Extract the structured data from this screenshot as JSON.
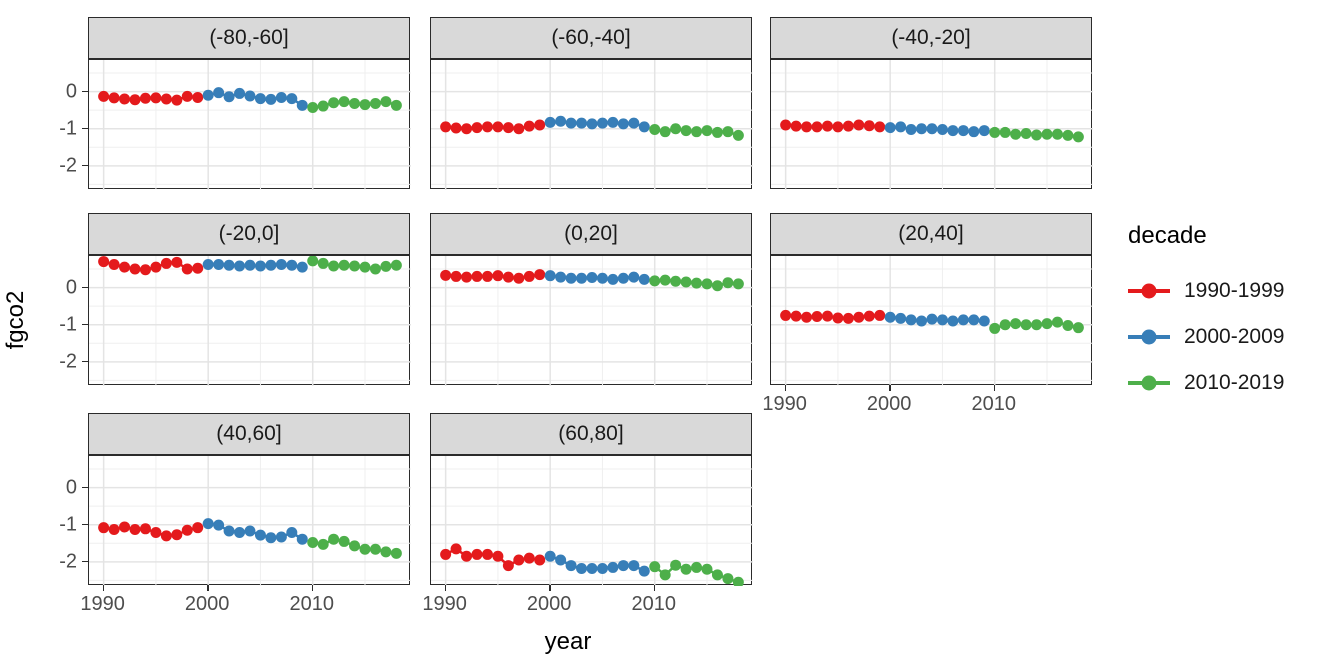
{
  "chart_data": {
    "type": "scatter",
    "title": "",
    "xlabel": "year",
    "ylabel": "fgco2",
    "legend_title": "decade",
    "legend_position": "right",
    "grid": "major+minor",
    "xlim": [
      1988.6,
      2019.4
    ],
    "ylim": [
      -2.65,
      0.85
    ],
    "x_ticks": [
      1990,
      2000,
      2010
    ],
    "x_tick_labels": [
      "1990",
      "2000",
      "2010"
    ],
    "x_minor_ticks": [
      1995,
      2005,
      2015
    ],
    "y_ticks": [
      0,
      -1,
      -2
    ],
    "y_tick_labels": [
      "0",
      "-1",
      "-2"
    ],
    "y_minor_ticks": [
      0.5,
      -0.5,
      -1.5,
      -2.5
    ],
    "series": [
      {
        "name": "1990-1999",
        "color": "#E41A1C",
        "start": 1990,
        "end": 1999
      },
      {
        "name": "2000-2009",
        "color": "#377EB8",
        "start": 2000,
        "end": 2009
      },
      {
        "name": "2010-2019",
        "color": "#4DAF4A",
        "start": 2010,
        "end": 2019
      }
    ],
    "years": [
      1990,
      1991,
      1992,
      1993,
      1994,
      1995,
      1996,
      1997,
      1998,
      1999,
      2000,
      2001,
      2002,
      2003,
      2004,
      2005,
      2006,
      2007,
      2008,
      2009,
      2010,
      2011,
      2012,
      2013,
      2014,
      2015,
      2016,
      2017,
      2018
    ],
    "facets": [
      {
        "label": "(-80,-60]",
        "values": [
          -0.13,
          -0.17,
          -0.2,
          -0.22,
          -0.18,
          -0.17,
          -0.2,
          -0.23,
          -0.13,
          -0.16,
          -0.1,
          -0.03,
          -0.14,
          -0.05,
          -0.12,
          -0.19,
          -0.21,
          -0.16,
          -0.19,
          -0.37,
          -0.43,
          -0.39,
          -0.3,
          -0.27,
          -0.32,
          -0.35,
          -0.32,
          -0.27,
          -0.37
        ]
      },
      {
        "label": "(-60,-40]",
        "values": [
          -0.95,
          -0.98,
          -1.0,
          -0.97,
          -0.95,
          -0.95,
          -0.97,
          -1.0,
          -0.93,
          -0.9,
          -0.83,
          -0.8,
          -0.85,
          -0.85,
          -0.87,
          -0.85,
          -0.83,
          -0.87,
          -0.85,
          -0.95,
          -1.02,
          -1.08,
          -1.0,
          -1.05,
          -1.08,
          -1.05,
          -1.1,
          -1.08,
          -1.18
        ]
      },
      {
        "label": "(-40,-20]",
        "values": [
          -0.9,
          -0.93,
          -0.95,
          -0.95,
          -0.93,
          -0.95,
          -0.93,
          -0.9,
          -0.92,
          -0.95,
          -0.97,
          -0.95,
          -1.02,
          -1.0,
          -1.0,
          -1.02,
          -1.05,
          -1.05,
          -1.08,
          -1.05,
          -1.1,
          -1.1,
          -1.15,
          -1.13,
          -1.17,
          -1.15,
          -1.15,
          -1.18,
          -1.22
        ]
      },
      {
        "label": "(-20,0]",
        "values": [
          0.7,
          0.62,
          0.55,
          0.5,
          0.48,
          0.55,
          0.65,
          0.68,
          0.5,
          0.52,
          0.62,
          0.62,
          0.6,
          0.58,
          0.6,
          0.58,
          0.6,
          0.62,
          0.6,
          0.55,
          0.72,
          0.65,
          0.58,
          0.6,
          0.58,
          0.55,
          0.5,
          0.57,
          0.6
        ]
      },
      {
        "label": "(0,20]",
        "values": [
          0.33,
          0.3,
          0.28,
          0.3,
          0.3,
          0.32,
          0.28,
          0.25,
          0.3,
          0.35,
          0.32,
          0.28,
          0.25,
          0.25,
          0.27,
          0.25,
          0.22,
          0.25,
          0.28,
          0.22,
          0.18,
          0.2,
          0.17,
          0.15,
          0.12,
          0.1,
          0.05,
          0.13,
          0.1
        ]
      },
      {
        "label": "(20,40]",
        "values": [
          -0.75,
          -0.77,
          -0.8,
          -0.78,
          -0.77,
          -0.82,
          -0.83,
          -0.8,
          -0.77,
          -0.75,
          -0.8,
          -0.83,
          -0.87,
          -0.9,
          -0.85,
          -0.87,
          -0.9,
          -0.87,
          -0.87,
          -0.9,
          -1.1,
          -1.0,
          -0.97,
          -1.0,
          -1.0,
          -0.97,
          -0.93,
          -1.02,
          -1.08
        ]
      },
      {
        "label": "(40,60]",
        "values": [
          -1.08,
          -1.13,
          -1.06,
          -1.13,
          -1.11,
          -1.21,
          -1.3,
          -1.27,
          -1.15,
          -1.08,
          -0.97,
          -1.01,
          -1.17,
          -1.21,
          -1.17,
          -1.28,
          -1.35,
          -1.33,
          -1.21,
          -1.39,
          -1.48,
          -1.53,
          -1.39,
          -1.45,
          -1.57,
          -1.66,
          -1.66,
          -1.73,
          -1.77
        ]
      },
      {
        "label": "(60,80]",
        "values": [
          -1.8,
          -1.65,
          -1.85,
          -1.8,
          -1.8,
          -1.85,
          -2.1,
          -1.95,
          -1.9,
          -1.95,
          -1.85,
          -1.95,
          -2.1,
          -2.18,
          -2.18,
          -2.18,
          -2.15,
          -2.1,
          -2.1,
          -2.25,
          -2.13,
          -2.35,
          -2.09,
          -2.2,
          -2.15,
          -2.2,
          -2.35,
          -2.45,
          -2.55
        ]
      }
    ],
    "style": {
      "strip_fill": "#D9D9D9",
      "panel_border": "#2b2b2b",
      "grid_major": "#E4E4E4",
      "grid_minor": "#EFEFEF",
      "tick_text": "#4D4D4D"
    }
  }
}
